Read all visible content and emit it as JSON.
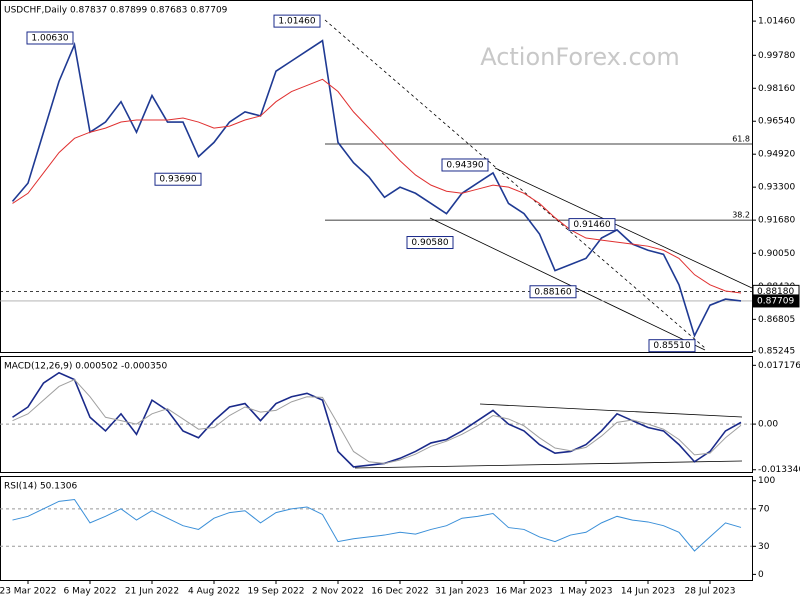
{
  "chart_data": [
    {
      "type": "line",
      "title": "USDCHF,Daily 0.87837 0.87899 0.87683 0.87709",
      "watermark": "ActionForex.com",
      "ylim": [
        0.852,
        1.0235
      ],
      "yticks": [
        {
          "value": 1.0146,
          "label": "1.01460"
        },
        {
          "value": 0.9978,
          "label": "0.99780"
        },
        {
          "value": 0.9816,
          "label": "0.98160"
        },
        {
          "value": 0.9654,
          "label": "0.96540"
        },
        {
          "value": 0.9492,
          "label": "0.94920"
        },
        {
          "value": 0.933,
          "label": "0.93300"
        },
        {
          "value": 0.9168,
          "label": "0.91680"
        },
        {
          "value": 0.9005,
          "label": "0.90050"
        },
        {
          "value": 0.8843,
          "label": "0.88430"
        },
        0.86805,
        0.85245
      ],
      "series": [
        {
          "name": "Close",
          "color": "#1f3a93",
          "values": [
            0.926,
            0.935,
            0.96,
            0.985,
            1.003,
            0.96,
            0.965,
            0.975,
            0.96,
            0.978,
            0.965,
            0.965,
            0.948,
            0.955,
            0.965,
            0.97,
            0.968,
            0.99,
            0.995,
            1.0,
            1.005,
            0.955,
            0.945,
            0.938,
            0.928,
            0.933,
            0.93,
            0.925,
            0.92,
            0.93,
            0.935,
            0.94,
            0.925,
            0.92,
            0.91,
            0.892,
            0.895,
            0.898,
            0.908,
            0.912,
            0.905,
            0.902,
            0.9,
            0.885,
            0.86,
            0.875,
            0.878,
            0.87709
          ]
        },
        {
          "name": "MA",
          "color": "#e03030",
          "values": [
            0.925,
            0.93,
            0.94,
            0.95,
            0.957,
            0.96,
            0.962,
            0.965,
            0.966,
            0.966,
            0.966,
            0.967,
            0.965,
            0.962,
            0.963,
            0.966,
            0.968,
            0.975,
            0.98,
            0.983,
            0.986,
            0.98,
            0.97,
            0.962,
            0.954,
            0.946,
            0.939,
            0.934,
            0.931,
            0.93,
            0.932,
            0.934,
            0.933,
            0.93,
            0.925,
            0.918,
            0.912,
            0.908,
            0.907,
            0.906,
            0.905,
            0.904,
            0.902,
            0.898,
            0.89,
            0.885,
            0.882,
            0.881
          ]
        }
      ],
      "annotations": [
        {
          "value": 1.0063,
          "label": "1.00630"
        },
        {
          "value": 1.0146,
          "label": "1.01460"
        },
        {
          "value": 0.9369,
          "label": "0.93690"
        },
        {
          "value": 0.9439,
          "label": "0.94390"
        },
        {
          "value": 0.9058,
          "label": "0.90580"
        },
        {
          "value": 0.9146,
          "label": "0.91460"
        },
        {
          "value": 0.8816,
          "label": "0.88160"
        },
        {
          "value": 0.8551,
          "label": "0.85510"
        }
      ],
      "levels": [
        {
          "value": 0.9542,
          "label": "61.8"
        },
        {
          "value": 0.9168,
          "label": "38.2"
        }
      ],
      "markers": [
        {
          "value": 0.8818,
          "label": "0.88180"
        },
        {
          "value": 0.87709,
          "label": "0.87709"
        }
      ]
    },
    {
      "type": "line",
      "title": "MACD(12,26,9) 0.000502 -0.000350",
      "ylim": [
        -0.014,
        0.0199
      ],
      "yticks": [
        0.017176,
        {
          "value": 0,
          "label": "0.00"
        },
        {
          "value": -0.01334,
          "label": "-0.013340"
        }
      ],
      "series": [
        {
          "name": "MACD",
          "color": "#1a2a8a",
          "values": [
            0.002,
            0.005,
            0.012,
            0.015,
            0.013,
            0.002,
            -0.002,
            0.003,
            -0.003,
            0.007,
            0.004,
            -0.002,
            -0.004,
            0.001,
            0.005,
            0.006,
            0.001,
            0.006,
            0.008,
            0.009,
            0.007,
            -0.008,
            -0.0125,
            -0.012,
            -0.0115,
            -0.01,
            -0.008,
            -0.0055,
            -0.0045,
            -0.002,
            0.001,
            0.004,
            0.0,
            -0.002,
            -0.006,
            -0.0085,
            -0.008,
            -0.006,
            -0.002,
            0.003,
            0.001,
            -0.001,
            -0.002,
            -0.006,
            -0.011,
            -0.008,
            -0.002,
            0.000502
          ]
        },
        {
          "name": "Signal",
          "color": "#a0a0a0",
          "values": [
            0.001,
            0.003,
            0.007,
            0.011,
            0.013,
            0.008,
            0.002,
            0.001,
            0.0,
            0.003,
            0.0045,
            0.0015,
            -0.0015,
            -0.001,
            0.0025,
            0.005,
            0.0035,
            0.004,
            0.0065,
            0.008,
            0.0078,
            0.0,
            -0.008,
            -0.011,
            -0.0115,
            -0.0105,
            -0.0088,
            -0.0065,
            -0.005,
            -0.003,
            -0.0005,
            0.0025,
            0.0015,
            -0.0005,
            -0.004,
            -0.007,
            -0.0078,
            -0.0068,
            -0.0035,
            0.0005,
            0.0012,
            0.0,
            -0.0015,
            -0.0045,
            -0.009,
            -0.0085,
            -0.004,
            -0.00035
          ]
        }
      ]
    },
    {
      "type": "line",
      "title": "RSI(14) 50.1306",
      "ylim": [
        -6,
        104
      ],
      "yticks": [
        100,
        70,
        30,
        0
      ],
      "levels": [
        70,
        30
      ],
      "categories": [
        null,
        "23 Mar 2022",
        null,
        null,
        null,
        "6 May 2022",
        null,
        null,
        null,
        "21 Jun 2022",
        null,
        null,
        null,
        "4 Aug 2022",
        null,
        null,
        null,
        "19 Sep 2022",
        null,
        null,
        null,
        "2 Nov 2022",
        null,
        null,
        null,
        "16 Dec 2022",
        null,
        null,
        null,
        "31 Jan 2023",
        null,
        null,
        null,
        "16 Mar 2023",
        null,
        null,
        null,
        "1 May 2023",
        null,
        null,
        null,
        "14 Jun 2023",
        null,
        null,
        null,
        "28 Jul 2023",
        null,
        null
      ],
      "series": [
        {
          "name": "RSI",
          "color": "#3a8fd8",
          "values": [
            58,
            62,
            70,
            78,
            80,
            55,
            62,
            70,
            58,
            68,
            60,
            52,
            48,
            60,
            66,
            68,
            55,
            66,
            70,
            72,
            64,
            35,
            38,
            40,
            42,
            45,
            43,
            48,
            52,
            60,
            62,
            65,
            50,
            48,
            40,
            35,
            42,
            45,
            55,
            62,
            58,
            56,
            52,
            45,
            25,
            40,
            55,
            50.1306
          ]
        }
      ]
    }
  ]
}
